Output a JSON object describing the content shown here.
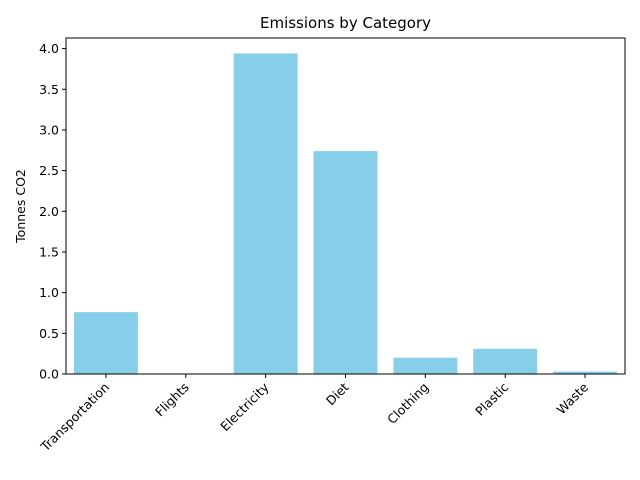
{
  "chart_data": {
    "type": "bar",
    "title": "Emissions by Category",
    "xlabel": "",
    "ylabel": "Tonnes CO2",
    "categories": [
      "Transportation",
      "Flights",
      "Electricity",
      "Diet",
      "Clothing",
      "Plastic",
      "Waste"
    ],
    "values": [
      0.76,
      0.0,
      3.94,
      2.74,
      0.2,
      0.31,
      0.03
    ],
    "ylim": [
      0,
      4.13
    ],
    "yticks": [
      "0.0",
      "0.5",
      "1.0",
      "1.5",
      "2.0",
      "2.5",
      "3.0",
      "3.5",
      "4.0"
    ],
    "bar_color": "#87ceeb",
    "grid": false,
    "legend": "none"
  }
}
